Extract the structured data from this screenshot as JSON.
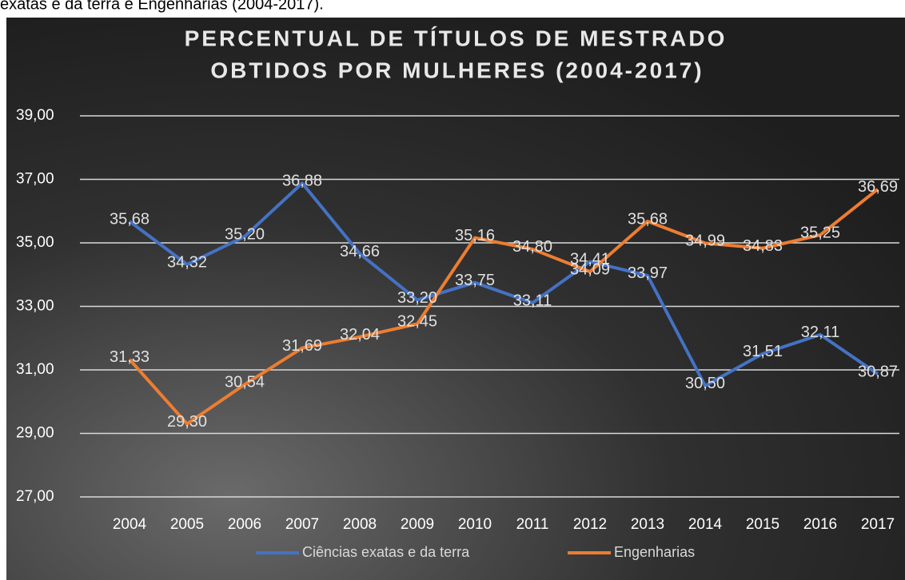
{
  "caption": "exatas e da terra e Engenharias (2004-2017).",
  "chart_data": {
    "type": "line",
    "title": [
      "PERCENTUAL DE TÍTULOS DE MESTRADO",
      "OBTIDOS POR MULHERES (2004-2017)"
    ],
    "categories": [
      "2004",
      "2005",
      "2006",
      "2007",
      "2008",
      "2009",
      "2010",
      "2011",
      "2012",
      "2013",
      "2014",
      "2015",
      "2016",
      "2017"
    ],
    "series": [
      {
        "name": "Ciências exatas e da terra",
        "color": "#4472c4",
        "values": [
          35.68,
          34.32,
          35.2,
          36.88,
          34.66,
          33.2,
          33.75,
          33.11,
          34.41,
          33.97,
          30.5,
          31.51,
          32.11,
          30.87
        ],
        "value_labels": [
          "35,68",
          "34,32",
          "35,20",
          "36,88",
          "34,66",
          "33,20",
          "33,75",
          "33,11",
          "34,41",
          "33,97",
          "30,50",
          "31,51",
          "32,11",
          "30,87"
        ]
      },
      {
        "name": "Engenharias",
        "color": "#ed7d31",
        "values": [
          31.33,
          29.3,
          30.54,
          31.69,
          32.04,
          32.45,
          35.16,
          34.8,
          34.09,
          35.68,
          34.99,
          34.83,
          35.25,
          36.69
        ],
        "value_labels": [
          "31,33",
          "29,30",
          "30,54",
          "31,69",
          "32,04",
          "32,45",
          "35,16",
          "34,80",
          "34,09",
          "35,68",
          "34,99",
          "34,83",
          "35,25",
          "36,69"
        ]
      }
    ],
    "ylim": [
      27,
      39
    ],
    "yticks": [
      {
        "value": 27,
        "label": "27,00"
      },
      {
        "value": 29,
        "label": "29,00"
      },
      {
        "value": 31,
        "label": "31,00"
      },
      {
        "value": 33,
        "label": "33,00"
      },
      {
        "value": 35,
        "label": "35,00"
      },
      {
        "value": 37,
        "label": "37,00"
      },
      {
        "value": 39,
        "label": "39,00"
      }
    ],
    "grid": true,
    "legend": "bottom"
  }
}
